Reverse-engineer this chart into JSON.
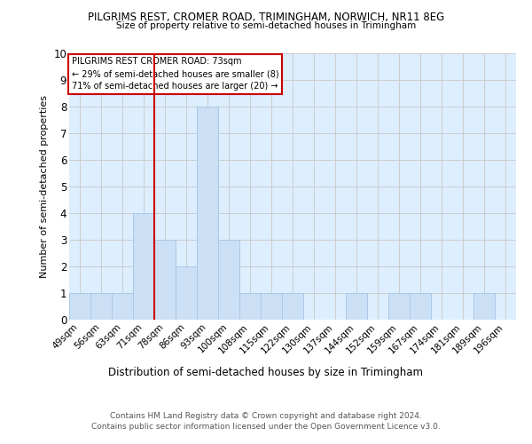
{
  "title1": "PILGRIMS REST, CROMER ROAD, TRIMINGHAM, NORWICH, NR11 8EG",
  "title2": "Size of property relative to semi-detached houses in Trimingham",
  "xlabel": "Distribution of semi-detached houses by size in Trimingham",
  "ylabel": "Number of semi-detached properties",
  "categories": [
    "49sqm",
    "56sqm",
    "63sqm",
    "71sqm",
    "78sqm",
    "86sqm",
    "93sqm",
    "100sqm",
    "108sqm",
    "115sqm",
    "122sqm",
    "130sqm",
    "137sqm",
    "144sqm",
    "152sqm",
    "159sqm",
    "167sqm",
    "174sqm",
    "181sqm",
    "189sqm",
    "196sqm"
  ],
  "values": [
    1,
    1,
    1,
    4,
    3,
    2,
    8,
    3,
    1,
    1,
    1,
    0,
    0,
    1,
    0,
    1,
    1,
    0,
    0,
    1,
    0
  ],
  "bar_color": "#cce0f5",
  "bar_edge_color": "#a8c8e8",
  "property_line_x": 3.5,
  "annotation_line1": "PILGRIMS REST CROMER ROAD: 73sqm",
  "annotation_line2": "← 29% of semi-detached houses are smaller (8)",
  "annotation_line3": "71% of semi-detached houses are larger (20) →",
  "annotation_box_color": "#ffffff",
  "annotation_box_edge": "#cc0000",
  "vline_color": "#cc0000",
  "grid_color": "#cccccc",
  "ylim": [
    0,
    10
  ],
  "yticks": [
    0,
    1,
    2,
    3,
    4,
    5,
    6,
    7,
    8,
    9,
    10
  ],
  "footnote1": "Contains HM Land Registry data © Crown copyright and database right 2024.",
  "footnote2": "Contains public sector information licensed under the Open Government Licence v3.0.",
  "background_color": "#ddeeff"
}
